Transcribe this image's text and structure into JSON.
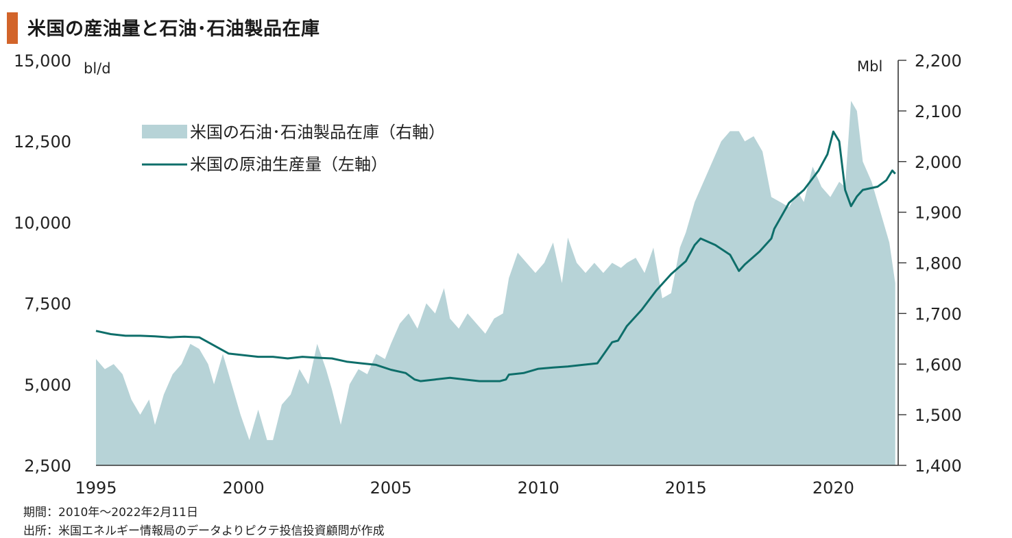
{
  "title": "米国の産油量と石油･石油製品在庫",
  "notes": {
    "period": "期間：2010年～2022年2月11日",
    "source": "出所：米国エネルギー情報局のデータよりピクテ投信投資顧問が作成"
  },
  "colors": {
    "title_accent": "#d2642a",
    "inventory_area": "#b7d3d7",
    "production_line": "#0e6e6a",
    "axis": "#333333"
  },
  "chart_data": {
    "type": "area+line",
    "title": "米国の産油量と石油･石油製品在庫",
    "x_ticks": [
      "1995",
      "2000",
      "2005",
      "2010",
      "2015",
      "2020"
    ],
    "xlim": [
      1995,
      2022.2
    ],
    "left_axis": {
      "unit": "bl/d",
      "ylim": [
        2500,
        15000
      ],
      "ticks": [
        "2,500",
        "5,000",
        "7,500",
        "10,000",
        "12,500",
        "15,000"
      ],
      "tick_values": [
        2500,
        5000,
        7500,
        10000,
        12500,
        15000
      ]
    },
    "right_axis": {
      "unit": "Mbl",
      "ylim": [
        1400,
        2200
      ],
      "ticks": [
        "1,400",
        "1,500",
        "1,600",
        "1,700",
        "1,800",
        "1,900",
        "2,000",
        "2,100",
        "2,200"
      ],
      "tick_values": [
        1400,
        1500,
        1600,
        1700,
        1800,
        1900,
        2000,
        2100,
        2200
      ]
    },
    "legend": {
      "placement": "top-left",
      "entries": [
        "米国の石油･石油製品在庫（右軸）",
        "米国の原油生産量（左軸）"
      ]
    },
    "series": [
      {
        "name": "米国の石油･石油製品在庫（右軸）",
        "type": "area",
        "axis": "right",
        "x": [
          1995.0,
          1995.3,
          1995.6,
          1995.9,
          1996.2,
          1996.5,
          1996.8,
          1997.0,
          1997.3,
          1997.6,
          1997.9,
          1998.2,
          1998.5,
          1998.8,
          1999.0,
          1999.3,
          1999.6,
          1999.9,
          2000.2,
          2000.5,
          2000.8,
          2001.0,
          2001.3,
          2001.6,
          2001.9,
          2002.2,
          2002.5,
          2002.8,
          2003.0,
          2003.3,
          2003.6,
          2003.9,
          2004.2,
          2004.5,
          2004.8,
          2005.0,
          2005.3,
          2005.6,
          2005.9,
          2006.2,
          2006.5,
          2006.8,
          2007.0,
          2007.3,
          2007.6,
          2007.9,
          2008.2,
          2008.5,
          2008.8,
          2009.0,
          2009.3,
          2009.6,
          2009.9,
          2010.2,
          2010.5,
          2010.8,
          2011.0,
          2011.3,
          2011.6,
          2011.9,
          2012.2,
          2012.5,
          2012.8,
          2013.0,
          2013.3,
          2013.6,
          2013.9,
          2014.2,
          2014.5,
          2014.8,
          2015.0,
          2015.3,
          2015.6,
          2015.9,
          2016.2,
          2016.5,
          2016.8,
          2017.0,
          2017.3,
          2017.6,
          2017.9,
          2018.2,
          2018.5,
          2018.8,
          2019.0,
          2019.3,
          2019.6,
          2019.9,
          2020.2,
          2020.4,
          2020.6,
          2020.8,
          2021.0,
          2021.3,
          2021.6,
          2021.9,
          2022.1
        ],
        "values": [
          1610,
          1590,
          1600,
          1580,
          1530,
          1500,
          1530,
          1480,
          1540,
          1580,
          1600,
          1640,
          1630,
          1600,
          1560,
          1620,
          1560,
          1500,
          1450,
          1510,
          1450,
          1450,
          1520,
          1540,
          1590,
          1560,
          1640,
          1590,
          1550,
          1480,
          1560,
          1590,
          1580,
          1620,
          1610,
          1640,
          1680,
          1700,
          1670,
          1720,
          1700,
          1750,
          1690,
          1670,
          1700,
          1680,
          1660,
          1690,
          1700,
          1770,
          1820,
          1800,
          1780,
          1800,
          1840,
          1760,
          1850,
          1800,
          1780,
          1800,
          1780,
          1800,
          1790,
          1800,
          1810,
          1780,
          1830,
          1730,
          1740,
          1830,
          1860,
          1920,
          1960,
          2000,
          2040,
          2060,
          2060,
          2040,
          2050,
          2020,
          1930,
          1920,
          1910,
          1940,
          1920,
          1990,
          1950,
          1930,
          1960,
          1950,
          2120,
          2100,
          2000,
          1960,
          1900,
          1840,
          1760
        ]
      },
      {
        "name": "米国の原油生産量（左軸）",
        "type": "line",
        "axis": "left",
        "x": [
          1995.0,
          1995.5,
          1996.0,
          1996.5,
          1997.0,
          1997.5,
          1998.0,
          1998.5,
          1999.0,
          1999.5,
          2000.0,
          2000.5,
          2001.0,
          2001.5,
          2002.0,
          2002.5,
          2003.0,
          2003.5,
          2004.0,
          2004.5,
          2005.0,
          2005.5,
          2005.8,
          2006.0,
          2006.5,
          2007.0,
          2007.5,
          2008.0,
          2008.5,
          2008.7,
          2008.9,
          2009.0,
          2009.5,
          2010.0,
          2010.5,
          2011.0,
          2011.5,
          2012.0,
          2012.5,
          2012.7,
          2013.0,
          2013.5,
          2014.0,
          2014.5,
          2015.0,
          2015.3,
          2015.5,
          2016.0,
          2016.5,
          2016.8,
          2017.0,
          2017.5,
          2017.9,
          2018.0,
          2018.5,
          2019.0,
          2019.5,
          2019.8,
          2020.0,
          2020.2,
          2020.4,
          2020.6,
          2020.8,
          2021.0,
          2021.5,
          2021.8,
          2022.0,
          2022.1
        ],
        "values": [
          6650,
          6550,
          6500,
          6500,
          6480,
          6450,
          6470,
          6450,
          6200,
          5950,
          5900,
          5850,
          5850,
          5800,
          5850,
          5820,
          5800,
          5700,
          5650,
          5600,
          5450,
          5350,
          5150,
          5100,
          5150,
          5200,
          5150,
          5100,
          5100,
          5100,
          5150,
          5300,
          5350,
          5480,
          5520,
          5550,
          5600,
          5650,
          6300,
          6350,
          6800,
          7300,
          7900,
          8400,
          8800,
          9300,
          9500,
          9300,
          9000,
          8500,
          8700,
          9100,
          9500,
          9800,
          10600,
          11000,
          11600,
          12100,
          12800,
          12500,
          11000,
          10500,
          10800,
          11000,
          11100,
          11300,
          11600,
          11500
        ]
      }
    ]
  }
}
